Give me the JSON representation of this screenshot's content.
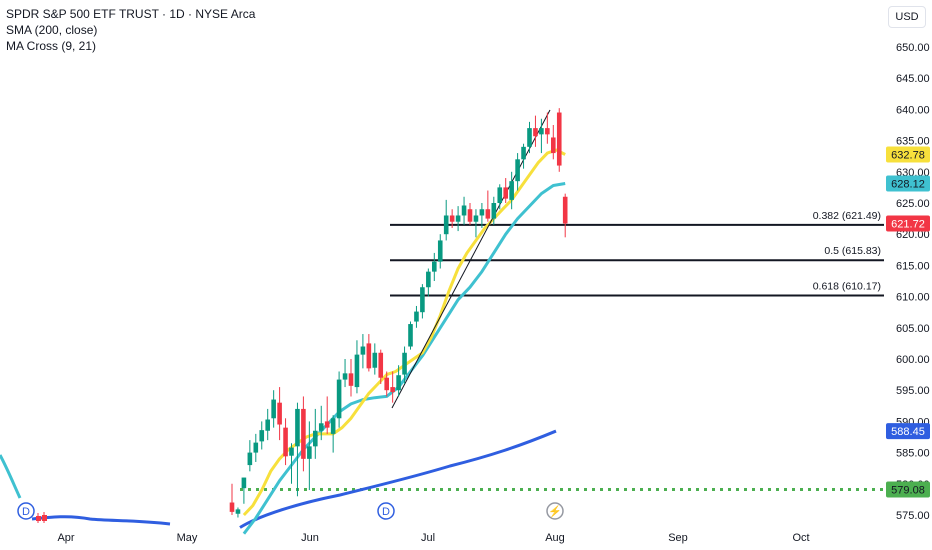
{
  "legend": {
    "title": "SPDR S&P 500 ETF TRUST · 1D · NYSE Arca",
    "sma": "SMA (200, close)",
    "ma_cross": "MA Cross (9, 21)"
  },
  "currency": "USD",
  "colors": {
    "up": "#089981",
    "down": "#f23645",
    "ma_fast": "#f7e03c",
    "ma_slow": "#3fc1d0",
    "sma200": "#2f5ee0",
    "support": "#4caf50",
    "fib": "#131722"
  },
  "chart_data": {
    "type": "candlestick",
    "symbol": "SPDR S&P 500 ETF TRUST",
    "interval": "1D",
    "exchange": "NYSE Arca",
    "ylim": [
      573,
      653
    ],
    "y_ticks": [
      "650.00",
      "645.00",
      "640.00",
      "635.00",
      "630.00",
      "625.00",
      "620.00",
      "615.00",
      "610.00",
      "605.00",
      "600.00",
      "595.00",
      "590.00",
      "585.00",
      "580.00",
      "575.00"
    ],
    "x_ticks": [
      "Apr",
      "May",
      "Jun",
      "Jul",
      "Aug",
      "Sep",
      "Oct"
    ],
    "candles": [
      {
        "o": 577.0,
        "h": 580.0,
        "l": 575.0,
        "c": 575.5
      },
      {
        "o": 575.2,
        "h": 576.2,
        "l": 574.6,
        "c": 575.9
      },
      {
        "o": 579.3,
        "h": 581.0,
        "l": 576.8,
        "c": 581.0
      },
      {
        "o": 583.0,
        "h": 587.0,
        "l": 582.0,
        "c": 585.0
      },
      {
        "o": 585.0,
        "h": 588.0,
        "l": 583.5,
        "c": 586.6
      },
      {
        "o": 586.8,
        "h": 590.0,
        "l": 585.5,
        "c": 588.6
      },
      {
        "o": 588.5,
        "h": 592.0,
        "l": 587.0,
        "c": 590.3
      },
      {
        "o": 590.5,
        "h": 595.0,
        "l": 589.0,
        "c": 593.5
      },
      {
        "o": 593.0,
        "h": 595.5,
        "l": 587.0,
        "c": 589.5
      },
      {
        "o": 589.0,
        "h": 590.5,
        "l": 583.0,
        "c": 584.4
      },
      {
        "o": 584.5,
        "h": 586.5,
        "l": 580.0,
        "c": 585.8
      },
      {
        "o": 586.0,
        "h": 593.0,
        "l": 578.0,
        "c": 592.0
      },
      {
        "o": 592.0,
        "h": 594.0,
        "l": 582.0,
        "c": 584.0
      },
      {
        "o": 584.0,
        "h": 590.0,
        "l": 579.0,
        "c": 586.0
      },
      {
        "o": 586.0,
        "h": 592.0,
        "l": 584.0,
        "c": 588.5
      },
      {
        "o": 588.5,
        "h": 592.5,
        "l": 587.0,
        "c": 589.7
      },
      {
        "o": 590.0,
        "h": 594.0,
        "l": 588.0,
        "c": 589.0
      },
      {
        "o": 588.0,
        "h": 591.0,
        "l": 585.0,
        "c": 590.5
      },
      {
        "o": 590.5,
        "h": 598.0,
        "l": 589.0,
        "c": 596.7
      },
      {
        "o": 596.7,
        "h": 600.0,
        "l": 595.5,
        "c": 597.7
      },
      {
        "o": 597.7,
        "h": 600.0,
        "l": 594.0,
        "c": 595.7
      },
      {
        "o": 595.5,
        "h": 603.0,
        "l": 594.5,
        "c": 600.7
      },
      {
        "o": 600.7,
        "h": 604.0,
        "l": 598.5,
        "c": 602.0
      },
      {
        "o": 602.5,
        "h": 604.0,
        "l": 598.0,
        "c": 598.5
      },
      {
        "o": 598.6,
        "h": 602.5,
        "l": 597.5,
        "c": 601.0
      },
      {
        "o": 601.0,
        "h": 601.5,
        "l": 596.0,
        "c": 597.0
      },
      {
        "o": 597.0,
        "h": 598.0,
        "l": 594.0,
        "c": 595.0
      },
      {
        "o": 595.5,
        "h": 598.0,
        "l": 593.0,
        "c": 594.7
      },
      {
        "o": 595.0,
        "h": 599.0,
        "l": 594.0,
        "c": 597.4
      },
      {
        "o": 597.5,
        "h": 602.0,
        "l": 596.0,
        "c": 601.0
      },
      {
        "o": 602.0,
        "h": 606.0,
        "l": 601.5,
        "c": 605.6
      },
      {
        "o": 606.0,
        "h": 608.5,
        "l": 605.0,
        "c": 607.6
      },
      {
        "o": 607.5,
        "h": 612.0,
        "l": 606.5,
        "c": 611.5
      },
      {
        "o": 611.5,
        "h": 614.5,
        "l": 610.0,
        "c": 614.0
      },
      {
        "o": 614.0,
        "h": 617.0,
        "l": 612.5,
        "c": 615.6
      },
      {
        "o": 615.6,
        "h": 620.0,
        "l": 614.5,
        "c": 619.0
      },
      {
        "o": 620.0,
        "h": 625.5,
        "l": 619.0,
        "c": 623.0
      },
      {
        "o": 623.0,
        "h": 624.0,
        "l": 621.0,
        "c": 622.0
      },
      {
        "o": 622.0,
        "h": 624.5,
        "l": 620.5,
        "c": 623.0
      },
      {
        "o": 623.0,
        "h": 626.0,
        "l": 621.5,
        "c": 624.6
      },
      {
        "o": 624.0,
        "h": 625.0,
        "l": 621.5,
        "c": 622.0
      },
      {
        "o": 622.0,
        "h": 624.0,
        "l": 619.5,
        "c": 623.0
      },
      {
        "o": 623.0,
        "h": 625.0,
        "l": 621.0,
        "c": 624.0
      },
      {
        "o": 624.0,
        "h": 627.0,
        "l": 622.0,
        "c": 622.5
      },
      {
        "o": 622.5,
        "h": 626.0,
        "l": 621.5,
        "c": 625.0
      },
      {
        "o": 625.0,
        "h": 628.0,
        "l": 624.0,
        "c": 627.5
      },
      {
        "o": 627.5,
        "h": 629.0,
        "l": 625.0,
        "c": 625.7
      },
      {
        "o": 625.5,
        "h": 630.0,
        "l": 624.0,
        "c": 628.5
      },
      {
        "o": 628.5,
        "h": 633.0,
        "l": 627.0,
        "c": 632.0
      },
      {
        "o": 632.0,
        "h": 634.5,
        "l": 630.5,
        "c": 634.0
      },
      {
        "o": 634.0,
        "h": 638.0,
        "l": 633.0,
        "c": 637.0
      },
      {
        "o": 637.0,
        "h": 639.0,
        "l": 634.0,
        "c": 635.7
      },
      {
        "o": 636.0,
        "h": 638.5,
        "l": 633.0,
        "c": 637.0
      },
      {
        "o": 637.0,
        "h": 639.5,
        "l": 634.5,
        "c": 636.0
      },
      {
        "o": 635.5,
        "h": 637.5,
        "l": 632.0,
        "c": 633.0
      },
      {
        "o": 639.5,
        "h": 640.2,
        "l": 630.0,
        "c": 631.0
      },
      {
        "o": 626.0,
        "h": 626.5,
        "l": 619.5,
        "c": 621.72
      }
    ],
    "ma_cross_fast_9": [
      {
        "v": 575.0
      },
      {
        "v": 576.5
      },
      {
        "v": 579.0
      },
      {
        "v": 582.0
      },
      {
        "v": 584.0
      },
      {
        "v": 585.5
      },
      {
        "v": 586.5
      },
      {
        "v": 587.5
      },
      {
        "v": 588.0
      },
      {
        "v": 588.0
      },
      {
        "v": 588.0
      },
      {
        "v": 589.0
      },
      {
        "v": 590.5
      },
      {
        "v": 592.5
      },
      {
        "v": 594.5
      },
      {
        "v": 596.0
      },
      {
        "v": 597.5
      },
      {
        "v": 598.0
      },
      {
        "v": 599.0
      },
      {
        "v": 600.0
      },
      {
        "v": 601.0
      },
      {
        "v": 603.5
      },
      {
        "v": 607.0
      },
      {
        "v": 611.0
      },
      {
        "v": 614.5
      },
      {
        "v": 617.0
      },
      {
        "v": 619.0
      },
      {
        "v": 621.0
      },
      {
        "v": 622.5
      },
      {
        "v": 624.0
      },
      {
        "v": 625.5
      },
      {
        "v": 627.5
      },
      {
        "v": 629.5
      },
      {
        "v": 631.5
      },
      {
        "v": 633.0
      },
      {
        "v": 633.5
      },
      {
        "v": 632.78
      }
    ],
    "ma_cross_slow_21": [
      {
        "v": 572.0
      },
      {
        "v": 574.5
      },
      {
        "v": 577.5
      },
      {
        "v": 580.5
      },
      {
        "v": 583.0
      },
      {
        "v": 585.5
      },
      {
        "v": 587.5
      },
      {
        "v": 589.5
      },
      {
        "v": 591.5
      },
      {
        "v": 592.8
      },
      {
        "v": 593.5
      },
      {
        "v": 593.8
      },
      {
        "v": 594.0
      },
      {
        "v": 595.5
      },
      {
        "v": 598.0
      },
      {
        "v": 600.5
      },
      {
        "v": 603.5
      },
      {
        "v": 606.5
      },
      {
        "v": 609.5
      },
      {
        "v": 611.5
      },
      {
        "v": 614.0
      },
      {
        "v": 617.0
      },
      {
        "v": 620.0
      },
      {
        "v": 622.5
      },
      {
        "v": 624.5
      },
      {
        "v": 626.5
      },
      {
        "v": 627.8
      },
      {
        "v": 628.12
      }
    ],
    "sma_200": [
      588.45
    ],
    "last_values": {
      "ma_fast": "632.78",
      "ma_slow": "628.12",
      "price": "621.72",
      "sma_200": "588.45",
      "support": "579.08"
    },
    "fib_levels": [
      {
        "ratio": "0.382",
        "price": 621.49,
        "label": "0.382 (621.49)"
      },
      {
        "ratio": "0.5",
        "price": 615.83,
        "label": "0.5 (615.83)"
      },
      {
        "ratio": "0.618",
        "price": 610.17,
        "label": "0.618 (610.17)"
      }
    ],
    "support_line": 579.08,
    "events": [
      "D",
      "D",
      "⚡"
    ],
    "legend_position": "top-left",
    "grid": false
  }
}
